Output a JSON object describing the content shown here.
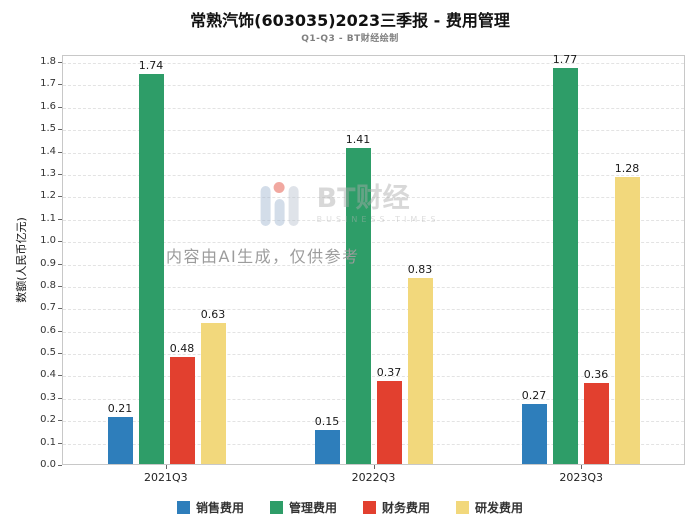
{
  "page": {
    "title": "常熟汽饰(603035)2023三季报 - 费用管理",
    "subtitle": "Q1-Q3 - BT财经绘制"
  },
  "watermark": {
    "brand": "BT财经",
    "brand_sub": "BUSINESS TIMES",
    "notice": "内容由AI生成，仅供参考"
  },
  "chart_data": {
    "type": "bar",
    "title": "常熟汽饰(603035)2023三季报 - 费用管理",
    "subtitle": "Q1-Q3 - BT财经绘制",
    "xlabel": "",
    "ylabel": "数额(人民币亿元)",
    "categories": [
      "2021Q3",
      "2022Q3",
      "2023Q3"
    ],
    "series": [
      {
        "name": "销售费用",
        "color": "#2e7ebb",
        "values": [
          0.21,
          0.15,
          0.27
        ]
      },
      {
        "name": "管理费用",
        "color": "#2e9d68",
        "values": [
          1.74,
          1.41,
          1.77
        ]
      },
      {
        "name": "财务费用",
        "color": "#e2402f",
        "values": [
          0.48,
          0.37,
          0.36
        ]
      },
      {
        "name": "研发费用",
        "color": "#f2d87c",
        "values": [
          0.63,
          0.83,
          1.28
        ]
      }
    ],
    "ylim": [
      0,
      1.8
    ],
    "ytick_step": 0.1,
    "grid": "horizontal-dashed",
    "legend_position": "bottom"
  }
}
